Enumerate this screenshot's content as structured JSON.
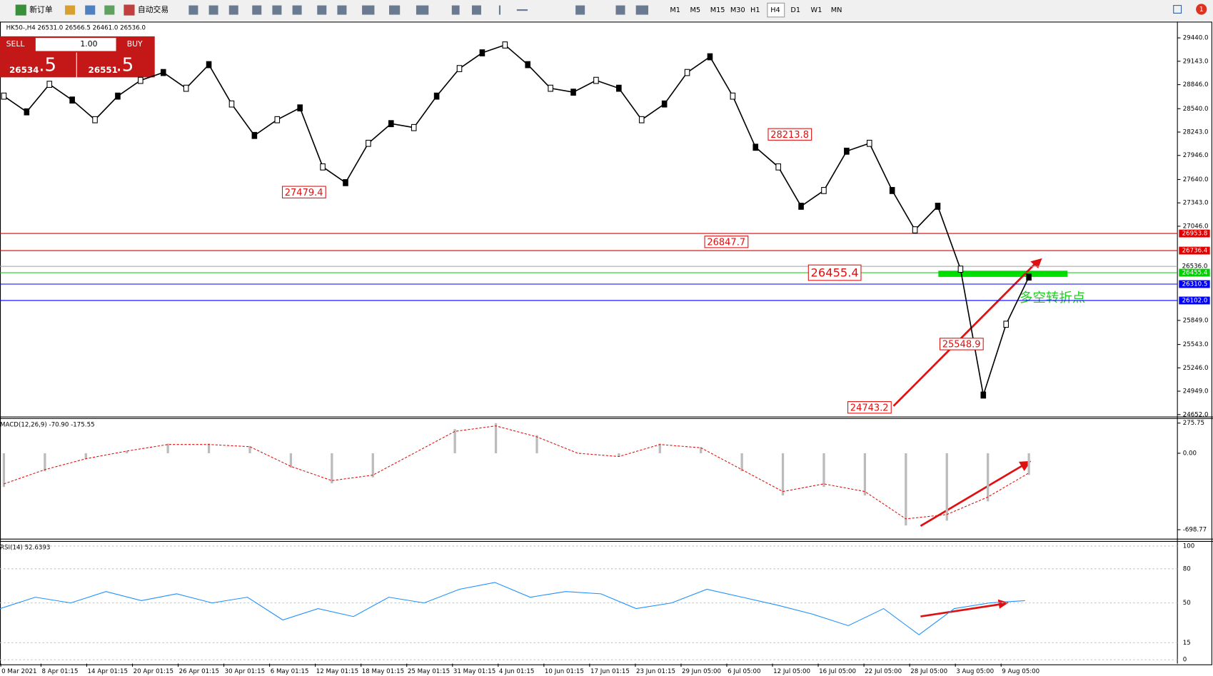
{
  "toolbar": {
    "new_order": "新订单",
    "auto_trading": "自动交易",
    "timeframes": [
      "M1",
      "M5",
      "M15",
      "M30",
      "H1",
      "H4",
      "D1",
      "W1",
      "MN"
    ],
    "active_timeframe": "H4",
    "notifications": "1"
  },
  "header": {
    "symbol_info": "HK50-,H4  26531.0 26566.5 26461.0 26536.0"
  },
  "one_click": {
    "sell": "SELL",
    "buy": "BUY",
    "lots": "1.00",
    "sell_price": "26534",
    "sell_pips": ".5",
    "buy_price": "26551",
    "buy_pips": ".5"
  },
  "main_chart": {
    "price_ticks": [
      {
        "value": 29440,
        "label": "29440.0"
      },
      {
        "value": 29143,
        "label": "29143.0"
      },
      {
        "value": 28846,
        "label": "28846.0"
      },
      {
        "value": 28540,
        "label": "28540.0"
      },
      {
        "value": 28243,
        "label": "28243.0"
      },
      {
        "value": 27946,
        "label": "27946.0"
      },
      {
        "value": 27640,
        "label": "27640.0"
      },
      {
        "value": 27343,
        "label": "27343.0"
      },
      {
        "value": 27046,
        "label": "27046.0"
      },
      {
        "value": 25849,
        "label": "25849.0"
      },
      {
        "value": 25543,
        "label": "25543.0"
      },
      {
        "value": 25246,
        "label": "25246.0"
      },
      {
        "value": 24949,
        "label": "24949.0"
      },
      {
        "value": 24652,
        "label": "24652.0"
      }
    ],
    "levels": [
      {
        "value": 26953.8,
        "label": "26953.8",
        "color": "#e00000"
      },
      {
        "value": 26736.4,
        "label": "26736.4",
        "color": "#e00000"
      },
      {
        "value": 26536,
        "label": "26536.0",
        "color": "#a0a0a0"
      },
      {
        "value": 26455.4,
        "label": "26455.4",
        "color": "#00d000"
      },
      {
        "value": 26310.5,
        "label": "26310.5",
        "color": "#0000ff"
      },
      {
        "value": 26102,
        "label": "26102.0",
        "color": "#0000ff"
      }
    ],
    "closes": [
      28700,
      28500,
      28850,
      28650,
      28400,
      28700,
      28900,
      29000,
      28800,
      29100,
      28600,
      28200,
      28400,
      28550,
      27800,
      27600,
      28100,
      28350,
      28300,
      28700,
      29050,
      29250,
      29350,
      29100,
      28800,
      28750,
      28900,
      28800,
      28400,
      28600,
      29000,
      29200,
      28700,
      28050,
      27800,
      27300,
      27500,
      28000,
      28100,
      27500,
      27000,
      27300,
      26500,
      24900,
      25800,
      26400
    ],
    "annotations": [
      {
        "label": "28213.8",
        "value": 28213.8
      },
      {
        "label": "27479.4",
        "value": 27479.4
      },
      {
        "label": "26847.7",
        "value": 26847.7
      },
      {
        "label": "26455.4",
        "value": 26455.4
      },
      {
        "label": "25548.9",
        "value": 25548.9
      },
      {
        "label": "24743.2",
        "value": 24743.2
      }
    ],
    "note": "多空转折点"
  },
  "macd": {
    "label": "MACD(12,26,9) -70.90 -175.55",
    "ticks": [
      275.75,
      {
        "value": 0,
        "label": "0.00"
      },
      -698.77
    ],
    "signal": [
      -280,
      -150,
      -50,
      20,
      80,
      80,
      60,
      -120,
      -250,
      -200,
      0,
      200,
      250,
      150,
      0,
      -30,
      80,
      50,
      -150,
      -350,
      -280,
      -350,
      -600,
      -560,
      -400,
      -180
    ]
  },
  "rsi": {
    "label": "RSI(14) 52.6393",
    "ticks": [
      100,
      80,
      50,
      15,
      0
    ],
    "values": [
      45,
      55,
      50,
      60,
      52,
      58,
      50,
      55,
      35,
      45,
      38,
      55,
      50,
      62,
      68,
      55,
      60,
      58,
      45,
      50,
      62,
      55,
      48,
      40,
      30,
      45,
      22,
      45,
      50,
      52
    ]
  },
  "time_axis": [
    "0 Mar 2021",
    "8 Apr 01:15",
    "14 Apr 01:15",
    "20 Apr 01:15",
    "26 Apr 01:15",
    "30 Apr 01:15",
    "6 May 01:15",
    "12 May 01:15",
    "18 May 01:15",
    "25 May 01:15",
    "31 May 01:15",
    "4 Jun 01:15",
    "10 Jun 01:15",
    "17 Jun 01:15",
    "23 Jun 01:15",
    "29 Jun 05:00",
    "6 Jul 05:00",
    "12 Jul 05:00",
    "16 Jul 05:00",
    "22 Jul 05:00",
    "28 Jul 05:00",
    "3 Aug 05:00",
    "9 Aug 05:00"
  ]
}
